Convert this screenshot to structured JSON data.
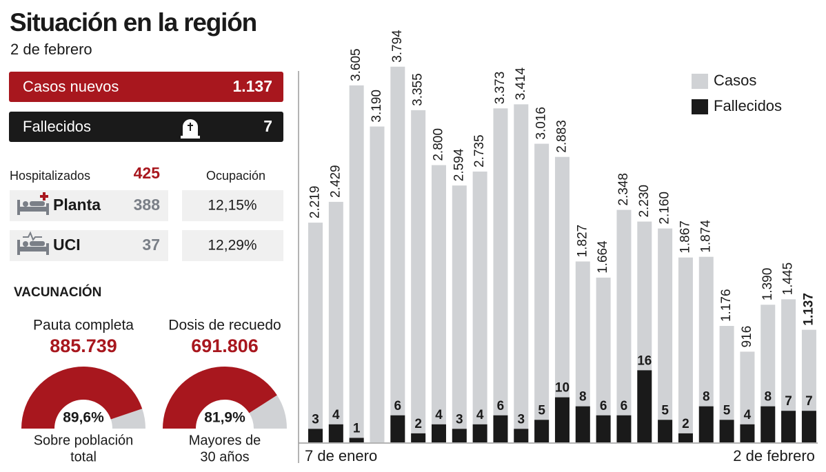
{
  "header": {
    "title": "Situación en la región",
    "subtitle": "2 de febrero"
  },
  "summary": {
    "new_cases": {
      "label": "Casos nuevos",
      "value": "1.137"
    },
    "deaths": {
      "label": "Fallecidos",
      "value": 7
    }
  },
  "hospital": {
    "label": "Hospitalizados",
    "total": 425,
    "occupancy_label": "Ocupación",
    "rows": [
      {
        "label": "Planta",
        "value": 388,
        "occupancy": "12,15%"
      },
      {
        "label": "UCI",
        "value": 37,
        "occupancy": "12,29%"
      }
    ]
  },
  "vaccination": {
    "title": "VACUNACIÓN",
    "items": [
      {
        "label": "Pauta completa",
        "value": "885.739",
        "percent": 89.6,
        "percent_label": "89,6%",
        "caption": [
          "Sobre población",
          "total"
        ]
      },
      {
        "label": "Dosis de recuedo",
        "value": "691.806",
        "percent": 81.9,
        "percent_label": "81,9%",
        "caption": [
          "Mayores de",
          "30 años"
        ]
      }
    ]
  },
  "chart_data": {
    "type": "bar",
    "categories": [
      "7 de enero",
      null,
      null,
      null,
      null,
      null,
      null,
      null,
      null,
      null,
      null,
      null,
      null,
      null,
      null,
      null,
      null,
      null,
      null,
      null,
      null,
      null,
      null,
      null,
      "2 de febrero"
    ],
    "ylim": [
      0,
      4050
    ],
    "y2lim": [
      0,
      89
    ],
    "legend": "top-right",
    "series": [
      {
        "name": "Casos",
        "color": "#d0d2d5",
        "values": [
          2219,
          2429,
          3605,
          3190,
          3794,
          3355,
          2800,
          2594,
          2735,
          3373,
          3414,
          3016,
          2883,
          1827,
          1664,
          2348,
          2230,
          2160,
          1867,
          1874,
          1176,
          916,
          1390,
          1445,
          1137
        ],
        "value_labels": [
          "2.219",
          "2.429",
          "3.605",
          "3.190",
          "3.794",
          "3.355",
          "2.800",
          "2.594",
          "2.735",
          "3.373",
          "3.414",
          "3.016",
          "2.883",
          "1.827",
          "1.664",
          "2.348",
          "2.230",
          "2.160",
          "1.867",
          "1.874",
          "1.176",
          "916",
          "1.390",
          "1.445",
          "1.137"
        ]
      },
      {
        "name": "Fallecidos",
        "color": "#1a1a1a",
        "axis": "y2",
        "values": [
          3,
          4,
          1,
          null,
          6,
          2,
          4,
          3,
          4,
          6,
          3,
          5,
          10,
          8,
          6,
          6,
          16,
          5,
          2,
          8,
          5,
          4,
          8,
          7,
          7
        ]
      }
    ]
  }
}
